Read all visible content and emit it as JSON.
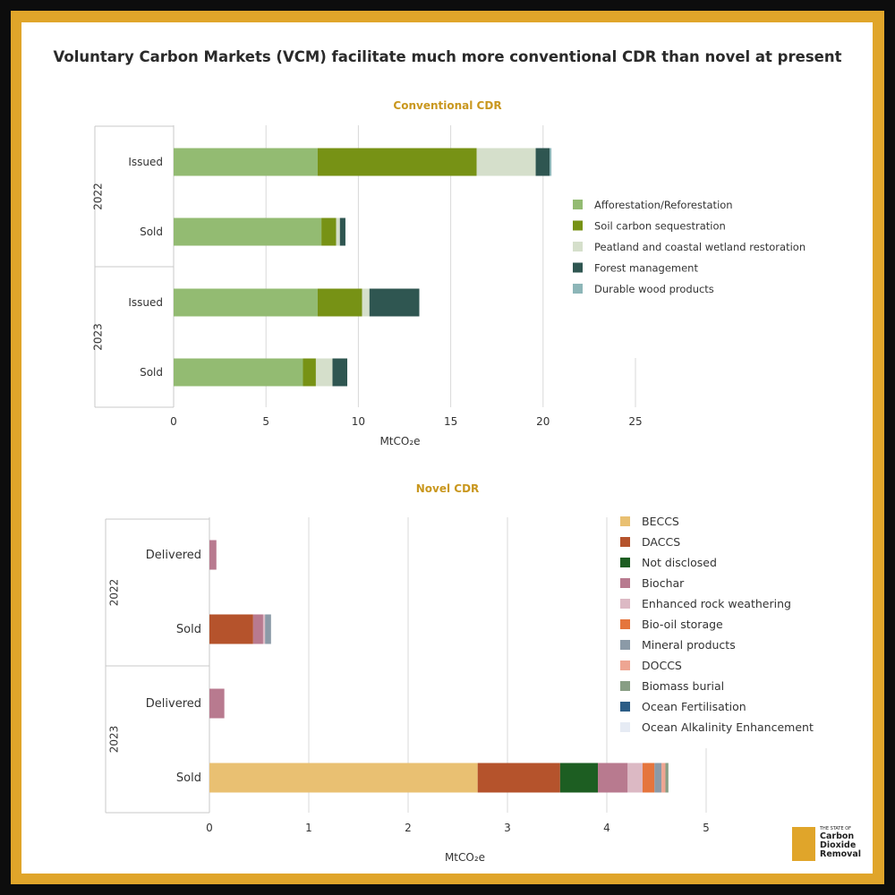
{
  "title": "Voluntary Carbon Markets (VCM) facilitate much more conventional CDR than novel at present",
  "brand": {
    "pre": "THE STATE OF",
    "words": [
      "Carbon",
      "Dioxide",
      "Removal"
    ]
  },
  "chart_data": [
    {
      "type": "bar",
      "orientation": "horizontal",
      "stacked": true,
      "title": "Conventional CDR",
      "xlabel": "MtCO₂e",
      "xlim": [
        0,
        25
      ],
      "xticks": [
        0,
        5,
        10,
        15,
        20,
        25
      ],
      "grid": true,
      "legend_position": "right",
      "groups": [
        {
          "label": "2022",
          "categories": [
            "Issued",
            "Sold"
          ]
        },
        {
          "label": "2023",
          "categories": [
            "Issued",
            "Sold"
          ]
        }
      ],
      "categories": [
        "Issued",
        "Sold",
        "Issued",
        "Sold"
      ],
      "series": [
        {
          "name": "Afforestation/Reforestation",
          "color": "#93bb72",
          "values": [
            7.8,
            8.0,
            7.8,
            7.0
          ]
        },
        {
          "name": "Soil carbon sequestration",
          "color": "#779215",
          "values": [
            8.6,
            0.8,
            2.4,
            0.7
          ]
        },
        {
          "name": "Peatland and coastal wetland restoration",
          "color": "#d5dfcb",
          "values": [
            3.2,
            0.2,
            0.4,
            0.9
          ]
        },
        {
          "name": "Forest management",
          "color": "#2f5651",
          "values": [
            0.75,
            0.3,
            2.7,
            0.8
          ]
        },
        {
          "name": "Durable wood products",
          "color": "#8db6b8",
          "values": [
            0.1,
            0.0,
            0.0,
            0.0
          ]
        }
      ]
    },
    {
      "type": "bar",
      "orientation": "horizontal",
      "stacked": true,
      "title": "Novel CDR",
      "xlabel": "MtCO₂e",
      "xlim": [
        0,
        5
      ],
      "xticks": [
        0,
        1,
        2,
        3,
        4,
        5
      ],
      "grid": true,
      "legend_position": "right",
      "groups": [
        {
          "label": "2022",
          "categories": [
            "Delivered",
            "Sold"
          ]
        },
        {
          "label": "2023",
          "categories": [
            "Delivered",
            "Sold"
          ]
        }
      ],
      "categories": [
        "Delivered",
        "Sold",
        "Delivered",
        "Sold"
      ],
      "series": [
        {
          "name": "BECCS",
          "color": "#e9c072",
          "values": [
            0.0,
            0.0,
            0.0,
            2.7
          ]
        },
        {
          "name": "DACCS",
          "color": "#b5532c",
          "values": [
            0.0,
            0.44,
            0.0,
            0.83
          ]
        },
        {
          "name": "Not disclosed",
          "color": "#1d5e22",
          "values": [
            0.0,
            0.0,
            0.0,
            0.38
          ]
        },
        {
          "name": "Biochar",
          "color": "#b87a8f",
          "values": [
            0.07,
            0.1,
            0.15,
            0.3
          ]
        },
        {
          "name": "Enhanced rock weathering",
          "color": "#dcb9c4",
          "values": [
            0.0,
            0.02,
            0.0,
            0.15
          ]
        },
        {
          "name": "Bio-oil storage",
          "color": "#e5753d",
          "values": [
            0.0,
            0.0,
            0.0,
            0.12
          ]
        },
        {
          "name": "Mineral products",
          "color": "#8b9aa7",
          "values": [
            0.0,
            0.06,
            0.0,
            0.07
          ]
        },
        {
          "name": "DOCCS",
          "color": "#eea592",
          "values": [
            0.0,
            0.0,
            0.0,
            0.04
          ]
        },
        {
          "name": "Biomass burial",
          "color": "#889e84",
          "values": [
            0.0,
            0.0,
            0.0,
            0.03
          ]
        },
        {
          "name": "Ocean Fertilisation",
          "color": "#2c5d86",
          "values": [
            0.0,
            0.0,
            0.0,
            0.0
          ]
        },
        {
          "name": "Ocean Alkalinity Enhancement",
          "color": "#e6ebf4",
          "values": [
            0.0,
            0.0,
            0.0,
            0.0
          ]
        }
      ]
    }
  ]
}
